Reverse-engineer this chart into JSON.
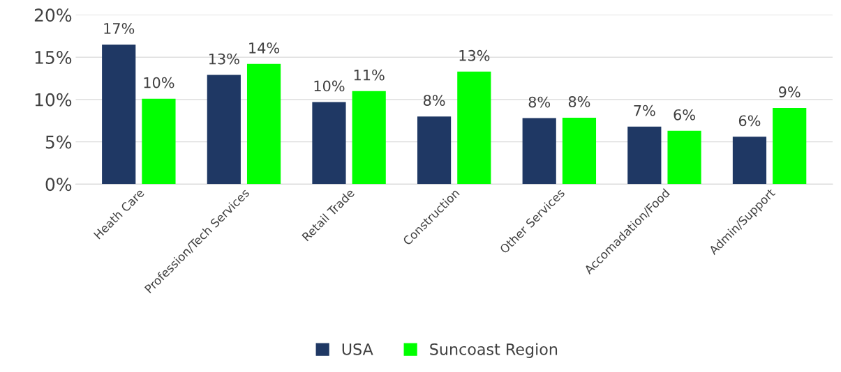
{
  "chart_data": {
    "type": "bar",
    "categories": [
      "Heath Care",
      "Profession/Tech Services",
      "Retail Trade",
      "Construction",
      "Other Services",
      "Accomadation/Food",
      "Admin/Support"
    ],
    "series": [
      {
        "name": "USA",
        "color": "#1f3864",
        "values": [
          16.5,
          12.9,
          9.7,
          8.0,
          7.8,
          6.8,
          5.6
        ],
        "value_labels": [
          "17%",
          "13%",
          "10%",
          "8%",
          "8%",
          "7%",
          "6%"
        ]
      },
      {
        "name": "Suncoast Region",
        "color": "#00ff00",
        "values": [
          10.1,
          14.2,
          11.0,
          13.3,
          7.85,
          6.3,
          9.0
        ],
        "value_labels": [
          "10%",
          "14%",
          "11%",
          "13%",
          "8%",
          "6%",
          "9%"
        ]
      }
    ],
    "ylim": [
      0,
      20
    ],
    "yticks": [
      {
        "value": 0,
        "label": "0%"
      },
      {
        "value": 5,
        "label": "5%"
      },
      {
        "value": 10,
        "label": "10%"
      },
      {
        "value": 15,
        "label": "15%"
      },
      {
        "value": 20,
        "label": "20%"
      }
    ],
    "grid": "y",
    "legend": "bottom"
  }
}
